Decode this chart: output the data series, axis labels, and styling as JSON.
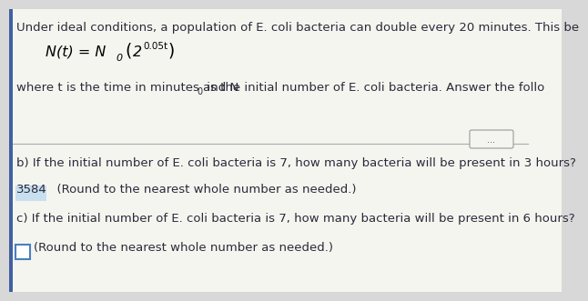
{
  "bg_color": "#d8d8d8",
  "white_bg": "#f5f5f0",
  "line1": "Under ideal conditions, a population of E. coli bacteria can double every 20 minutes. This be",
  "line3_part1": "where t is the time in minutes and N",
  "line3_sub0": "0",
  "line3_part2": " is the initial number of E. coli bacteria. Answer the follo",
  "dots_text": "...",
  "part_b": "b) If the initial number of E. coli bacteria is 7, how many bacteria will be present in 3 hours?",
  "answer_b": "3584",
  "answer_b_suffix": "  (Round to the nearest whole number as needed.)",
  "answer_b_highlight": "#c8dff0",
  "part_c": "c) If the initial number of E. coli bacteria is 7, how many bacteria will be present in 6 hours?",
  "answer_c_suffix": "(Round to the nearest whole number as needed.)",
  "answer_c_box_color": "#4a7fc1",
  "text_color": "#2a2a3a",
  "blue_bar_color": "#4060a0",
  "formula_color": "#000000",
  "sep_color": "#aaaaaa",
  "font_size_main": 9.5,
  "font_size_formula": 11.5,
  "font_size_small": 7.5
}
